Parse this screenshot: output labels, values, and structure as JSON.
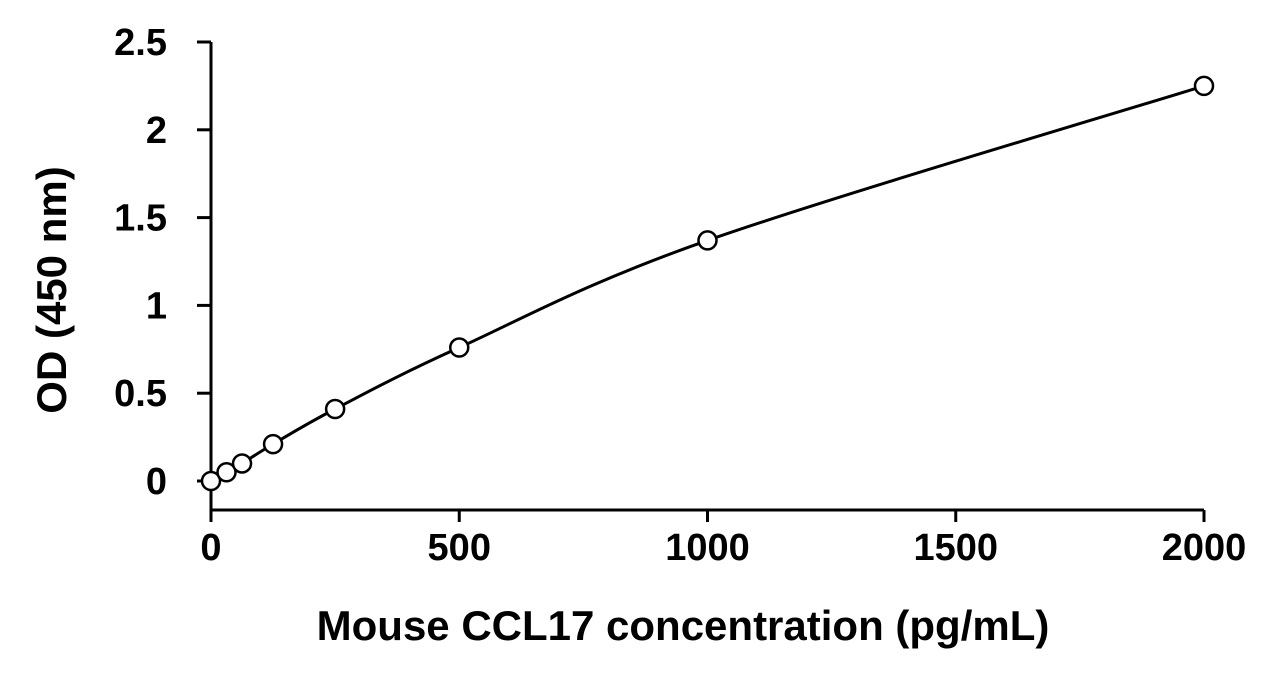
{
  "chart_data": {
    "type": "scatter",
    "title": "",
    "xlabel": "Mouse CCL17 concentration (pg/mL)",
    "ylabel": "OD (450 nm)",
    "xlim": [
      0,
      2000
    ],
    "ylim": [
      0,
      2.5
    ],
    "x_ticks": [
      0,
      500,
      1000,
      1500,
      2000
    ],
    "y_ticks": [
      0,
      0.5,
      1,
      1.5,
      2,
      2.5
    ],
    "x_tick_labels": [
      "0",
      "500",
      "1000",
      "1500",
      "2000"
    ],
    "y_tick_labels": [
      "0",
      "0.5",
      "1",
      "1.5",
      "2",
      "2.5"
    ],
    "grid": false,
    "legend": "none",
    "marker": "open-circle",
    "fit_line": true,
    "series": [
      {
        "x": [
          0,
          31.25,
          62.5,
          125,
          250,
          500,
          1000,
          2000
        ],
        "y": [
          0.0,
          0.05,
          0.1,
          0.21,
          0.41,
          0.76,
          1.37,
          2.25
        ]
      }
    ]
  }
}
